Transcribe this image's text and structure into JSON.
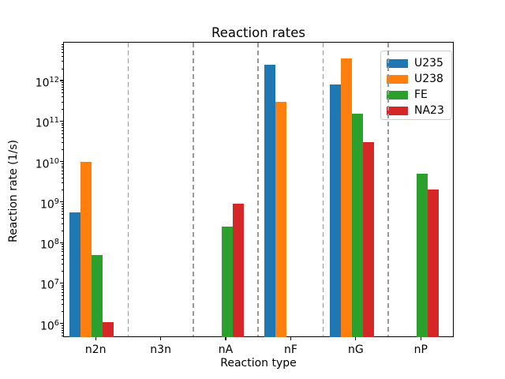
{
  "chart_data": {
    "type": "bar",
    "title": "Reaction rates",
    "xlabel": "Reaction type",
    "ylabel": "Reaction rate (1/s)",
    "yscale": "log",
    "ylim": [
      460000,
      9000000000000
    ],
    "ytick_exponents": [
      6,
      7,
      8,
      9,
      10,
      11,
      12
    ],
    "categories": [
      "n2n",
      "n3n",
      "nA",
      "nF",
      "nG",
      "nP"
    ],
    "series": [
      {
        "name": "U235",
        "color": "#1f77b4",
        "values": [
          550000000,
          0,
          0,
          2500000000000,
          800000000000,
          0
        ]
      },
      {
        "name": "U238",
        "color": "#ff7f0e",
        "values": [
          10000000000,
          0,
          0,
          300000000000,
          3500000000000,
          0
        ]
      },
      {
        "name": "FE",
        "color": "#2ca02c",
        "values": [
          50000000,
          0,
          250000000,
          0,
          150000000000,
          5000000000
        ]
      },
      {
        "name": "NA23",
        "color": "#d62728",
        "values": [
          1100000,
          0,
          900000000,
          0,
          30000000000,
          2000000000
        ]
      }
    ],
    "legend": {
      "position": "upper-right",
      "entries": [
        "U235",
        "U238",
        "FE",
        "NA23"
      ]
    },
    "separator_color": "#9a9a9a",
    "separator_style": "dashed",
    "grid": "vertical-category-separators-only",
    "background": "#ffffff"
  }
}
